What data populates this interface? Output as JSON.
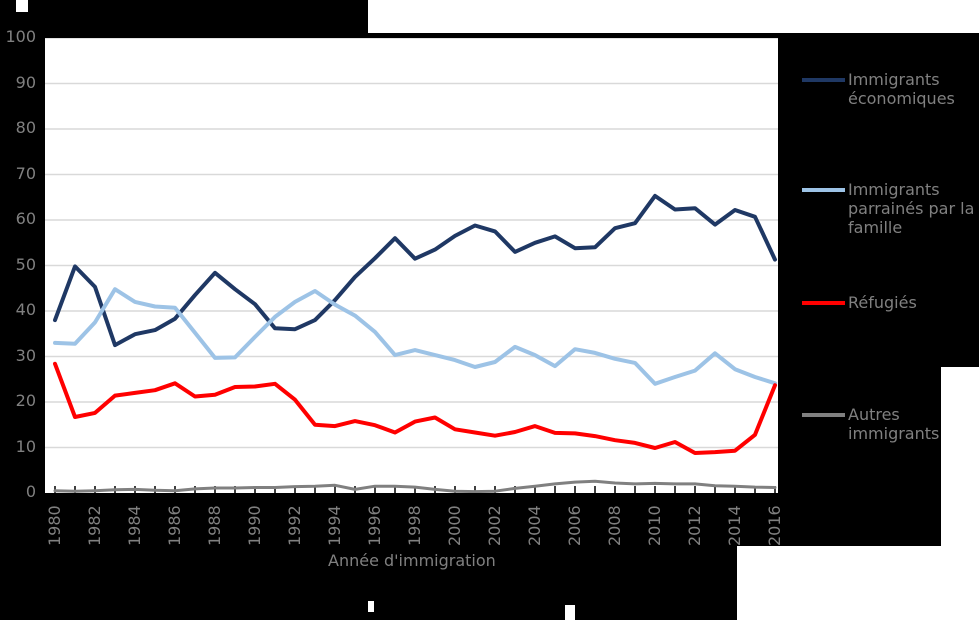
{
  "figure": {
    "background_color": "#000000",
    "plot_background": "#FFFFFF",
    "gridline_color": "#D9D9D9",
    "axis_text_color": "#808080",
    "legend_text_color": "#808080",
    "tick_mark_color": "#000000"
  },
  "chart_data": {
    "type": "line",
    "title": "",
    "xlabel": "Année d'immigration",
    "ylabel": "",
    "ylim": [
      0,
      100
    ],
    "y_tick_values": [
      0,
      10,
      20,
      30,
      40,
      50,
      60,
      70,
      80,
      90,
      100
    ],
    "y_tick_labels": [
      "0",
      "10",
      "20",
      "30",
      "40",
      "50",
      "60",
      "70",
      "80",
      "90",
      "100"
    ],
    "x": [
      1980,
      1981,
      1982,
      1983,
      1984,
      1985,
      1986,
      1987,
      1988,
      1989,
      1990,
      1991,
      1992,
      1993,
      1994,
      1995,
      1996,
      1997,
      1998,
      1999,
      2000,
      2001,
      2002,
      2003,
      2004,
      2005,
      2006,
      2007,
      2008,
      2009,
      2010,
      2011,
      2012,
      2013,
      2014,
      2015,
      2016
    ],
    "x_tick_labels": [
      "1980",
      "1982",
      "1984",
      "1986",
      "1988",
      "1990",
      "1992",
      "1994",
      "1996",
      "1998",
      "2000",
      "2002",
      "2004",
      "2006",
      "2008",
      "2010",
      "2012",
      "2014",
      "2016"
    ],
    "grid": "horizontal",
    "legend_position": "right",
    "series": [
      {
        "name": "Immigrants économiques",
        "label_lines": [
          "Immigrants",
          "économiques"
        ],
        "color": "#1F3864",
        "stroke_width": 4,
        "values": [
          38.0,
          49.8,
          45.3,
          32.5,
          34.9,
          35.8,
          38.3,
          43.5,
          48.4,
          44.8,
          41.5,
          36.2,
          36.0,
          38.0,
          42.4,
          47.5,
          51.6,
          56.0,
          51.5,
          53.5,
          56.5,
          58.8,
          57.5,
          53.0,
          55.0,
          56.4,
          53.8,
          54.0,
          58.2,
          59.3,
          65.3,
          62.3,
          62.6,
          59.0,
          62.2,
          60.7,
          51.3
        ]
      },
      {
        "name": "Immigrants parrainés par la famille",
        "label_lines": [
          "Immigrants",
          "parrainés par la",
          "famille"
        ],
        "color": "#9DC3E6",
        "stroke_width": 4,
        "values": [
          33.0,
          32.8,
          37.5,
          44.8,
          42.0,
          41.0,
          40.7,
          35.2,
          29.7,
          29.8,
          34.3,
          38.7,
          42.0,
          44.4,
          41.4,
          39.0,
          35.4,
          30.3,
          31.4,
          30.3,
          29.2,
          27.7,
          28.8,
          32.1,
          30.3,
          27.9,
          31.6,
          30.8,
          29.5,
          28.6,
          24.0,
          25.5,
          26.9,
          30.7,
          27.2,
          25.5,
          24.1
        ]
      },
      {
        "name": "Réfugiés",
        "label_lines": [
          "Réfugiés"
        ],
        "color": "#FF0000",
        "stroke_width": 4,
        "values": [
          28.4,
          16.7,
          17.6,
          21.4,
          22.0,
          22.6,
          24.1,
          21.2,
          21.6,
          23.3,
          23.4,
          24.0,
          20.5,
          15.0,
          14.7,
          15.8,
          14.9,
          13.3,
          15.7,
          16.6,
          14.0,
          13.3,
          12.6,
          13.4,
          14.7,
          13.2,
          13.1,
          12.5,
          11.6,
          11.0,
          9.9,
          11.2,
          8.8,
          9.0,
          9.3,
          12.8,
          23.7
        ]
      },
      {
        "name": "Autres immigrants",
        "label_lines": [
          "Autres",
          "immigrants"
        ],
        "color": "#808080",
        "stroke_width": 3,
        "values": [
          0.5,
          0.4,
          0.5,
          0.7,
          0.8,
          0.6,
          0.5,
          0.9,
          1.1,
          1.1,
          1.2,
          1.2,
          1.4,
          1.5,
          1.7,
          0.8,
          1.5,
          1.5,
          1.3,
          0.8,
          0.4,
          0.3,
          0.4,
          1.0,
          1.5,
          2.0,
          2.4,
          2.6,
          2.2,
          2.0,
          2.1,
          2.0,
          2.0,
          1.6,
          1.5,
          1.3,
          1.2
        ]
      }
    ]
  }
}
